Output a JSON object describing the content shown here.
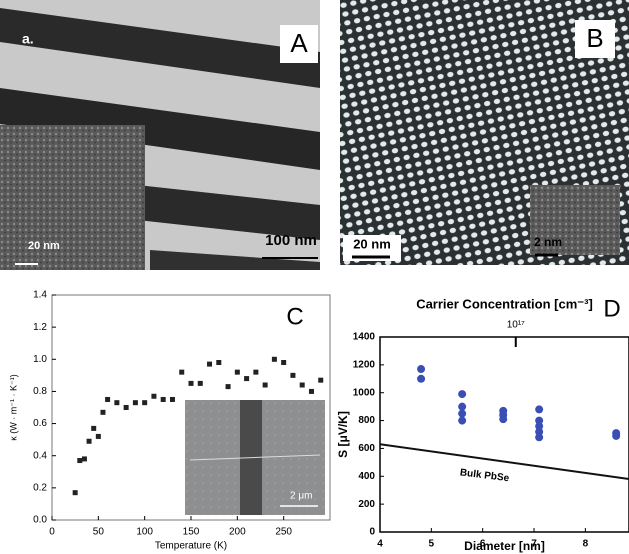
{
  "panels": {
    "A": {
      "label": "A",
      "sublabel": "a.",
      "inset_scale": "20 nm",
      "scale": "100 nm"
    },
    "B": {
      "label": "B",
      "scale": "20 nm",
      "inset_scale": "2 nm"
    }
  },
  "chart_data": [
    {
      "type": "scatter",
      "label": "C",
      "x_label": "Temperature (K)",
      "y_label": "κ (W · m⁻¹ · K⁻¹)",
      "inset_scale": "2 μm",
      "xlim": [
        0,
        300
      ],
      "ylim": [
        0,
        1.4
      ],
      "xticks": [
        0,
        50,
        100,
        150,
        200,
        250
      ],
      "yticks": [
        {
          "value": 0,
          "label": "0.0"
        },
        0.2,
        0.4,
        0.6,
        0.8,
        {
          "value": 1,
          "label": "1.0"
        },
        1.2,
        1.4
      ],
      "series": [
        {
          "marker": "square",
          "color": "#222222",
          "x": [
            25,
            30,
            35,
            40,
            45,
            50,
            55,
            60,
            70,
            80,
            90,
            100,
            110,
            120,
            130,
            140,
            150,
            160,
            170,
            180,
            190,
            200,
            210,
            220,
            230,
            240,
            250,
            260,
            270,
            280,
            290
          ],
          "values": [
            0.17,
            0.37,
            0.38,
            0.49,
            0.57,
            0.52,
            0.67,
            0.75,
            0.73,
            0.7,
            0.73,
            0.73,
            0.77,
            0.75,
            0.75,
            0.92,
            0.85,
            0.85,
            0.97,
            0.98,
            0.83,
            0.92,
            0.88,
            0.92,
            0.84,
            1.0,
            0.98,
            0.9,
            0.84,
            0.8,
            0.87
          ]
        }
      ]
    },
    {
      "type": "scatter",
      "label": "D",
      "x_label": "Diameter [nm]",
      "y_label": "S [μV/K]",
      "x2_label": "Carrier Concentration [cm⁻³]",
      "xlim": [
        4,
        8.85
      ],
      "ylim": [
        0,
        1400
      ],
      "xticks": [
        4,
        5,
        6,
        7,
        8
      ],
      "yticks": [
        0,
        200,
        400,
        600,
        800,
        1000,
        1200,
        1400
      ],
      "x2scale": "log",
      "x2lim": [
        3e+17,
        4e+16
      ],
      "x2ticks": [
        {
          "value": 1e+17,
          "label": "10¹⁷"
        }
      ],
      "series": [
        {
          "marker": "circle",
          "color": "#3a4fb5",
          "x": [
            4.8,
            4.8,
            5.6,
            5.6,
            5.6,
            5.6,
            6.4,
            6.4,
            6.4,
            7.1,
            7.1,
            7.1,
            7.1,
            7.1,
            8.6,
            8.6
          ],
          "values": [
            1170,
            1100,
            990,
            900,
            850,
            800,
            870,
            840,
            810,
            880,
            800,
            760,
            720,
            680,
            710,
            690
          ]
        },
        {
          "marker": "line",
          "name": "Bulk PbSe",
          "color": "#111111",
          "x": [
            4,
            8.85
          ],
          "values": [
            630,
            380
          ]
        }
      ]
    }
  ]
}
